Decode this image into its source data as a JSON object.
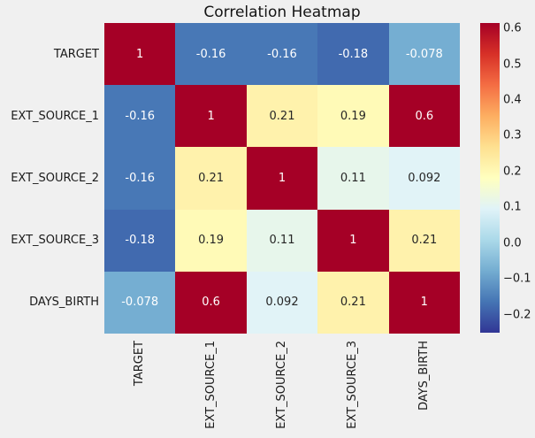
{
  "figure": {
    "background_color": "#f0f0f0"
  },
  "chart_data": {
    "type": "heatmap",
    "title": "Correlation Heatmap",
    "x_labels": [
      "TARGET",
      "EXT_SOURCE_1",
      "EXT_SOURCE_2",
      "EXT_SOURCE_3",
      "DAYS_BIRTH"
    ],
    "y_labels": [
      "TARGET",
      "EXT_SOURCE_1",
      "EXT_SOURCE_2",
      "EXT_SOURCE_3",
      "DAYS_BIRTH"
    ],
    "matrix": [
      [
        1,
        -0.16,
        -0.16,
        -0.18,
        -0.078
      ],
      [
        -0.16,
        1,
        0.21,
        0.19,
        0.6
      ],
      [
        -0.16,
        0.21,
        1,
        0.11,
        0.092
      ],
      [
        -0.18,
        0.19,
        0.11,
        1,
        0.21
      ],
      [
        -0.078,
        0.6,
        0.092,
        0.21,
        1
      ]
    ],
    "cell_labels": [
      [
        "1",
        "-0.16",
        "-0.16",
        "-0.18",
        "-0.078"
      ],
      [
        "-0.16",
        "1",
        "0.21",
        "0.19",
        "0.6"
      ],
      [
        "-0.16",
        "0.21",
        "1",
        "0.11",
        "0.092"
      ],
      [
        "-0.18",
        "0.19",
        "0.11",
        "1",
        "0.21"
      ],
      [
        "-0.078",
        "0.6",
        "0.092",
        "0.21",
        "1"
      ]
    ],
    "cell_colors": [
      [
        "#a50026",
        "#4878b6",
        "#4878b6",
        "#416aaf",
        "#75aed2"
      ],
      [
        "#4878b6",
        "#a50026",
        "#fff2ac",
        "#fffab7",
        "#a50026"
      ],
      [
        "#4878b6",
        "#fff2ac",
        "#a50026",
        "#e7f6eb",
        "#e1f3f7"
      ],
      [
        "#416aaf",
        "#fffab7",
        "#e7f6eb",
        "#a50026",
        "#fff2ac"
      ],
      [
        "#75aed2",
        "#a50026",
        "#e1f3f7",
        "#fff2ac",
        "#a50026"
      ]
    ],
    "cell_text_colors": [
      [
        "#ffffff",
        "#ffffff",
        "#ffffff",
        "#ffffff",
        "#ffffff"
      ],
      [
        "#ffffff",
        "#ffffff",
        "#262626",
        "#262626",
        "#ffffff"
      ],
      [
        "#ffffff",
        "#262626",
        "#ffffff",
        "#262626",
        "#262626"
      ],
      [
        "#ffffff",
        "#262626",
        "#262626",
        "#ffffff",
        "#262626"
      ],
      [
        "#ffffff",
        "#ffffff",
        "#262626",
        "#262626",
        "#ffffff"
      ]
    ],
    "colormap": {
      "name": "RdYlBu_r",
      "stops_top_to_bottom": [
        "#a50026",
        "#d73027",
        "#f46d43",
        "#fdae61",
        "#fee090",
        "#ffffbf",
        "#e0f3f8",
        "#abd9e9",
        "#74add1",
        "#4575b4",
        "#313695"
      ]
    },
    "colorbar": {
      "tick_values": [
        0.6,
        0.5,
        0.4,
        0.3,
        0.2,
        0.1,
        0.0,
        -0.1,
        -0.2
      ],
      "tick_labels": [
        "0.6",
        "0.5",
        "0.4",
        "0.3",
        "0.2",
        "0.1",
        "0.0",
        "−0.1",
        "−0.2"
      ]
    },
    "grid": false,
    "legend": null
  }
}
